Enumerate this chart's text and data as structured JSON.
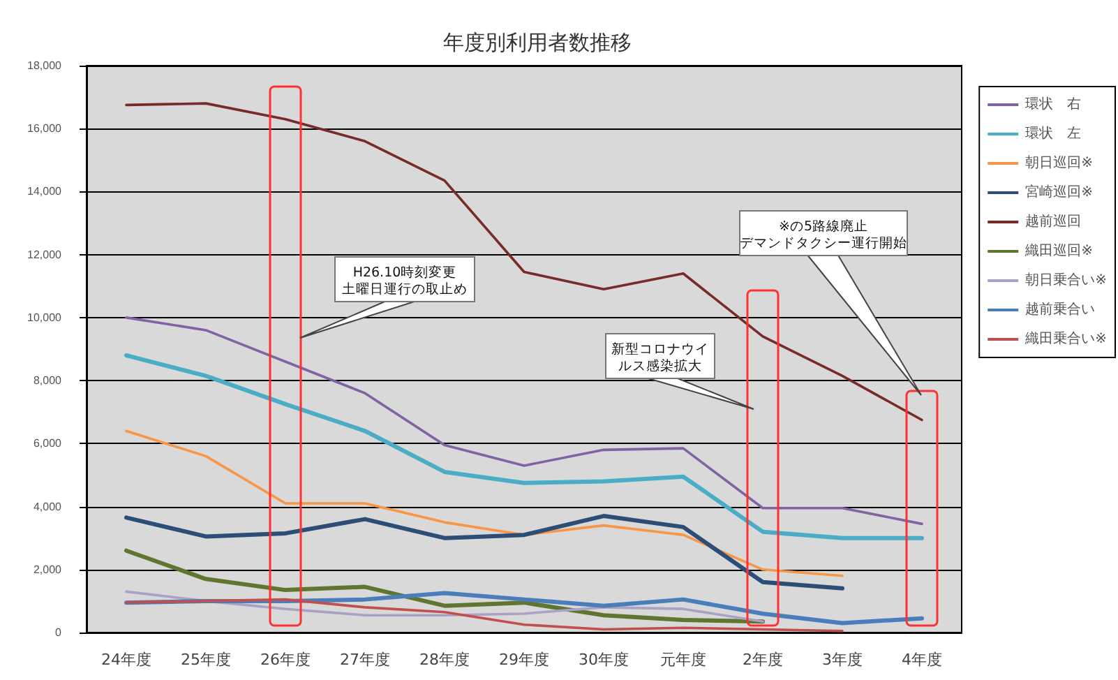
{
  "chart_data": {
    "type": "line",
    "title": "年度別利用者数推移",
    "categories": [
      "24年度",
      "25年度",
      "26年度",
      "27年度",
      "28年度",
      "29年度",
      "30年度",
      "元年度",
      "2年度",
      "3年度",
      "4年度"
    ],
    "series": [
      {
        "name": "環状　右",
        "color": "#8064a2",
        "values": [
          10000,
          9600,
          8600,
          7600,
          5950,
          5300,
          5800,
          5850,
          3950,
          3950,
          3450
        ]
      },
      {
        "name": "環状　左",
        "color": "#4bacc6",
        "values": [
          8800,
          8150,
          7250,
          6400,
          5100,
          4750,
          4800,
          4950,
          3200,
          3000,
          3000
        ]
      },
      {
        "name": "朝日巡回※",
        "color": "#f79646",
        "values": [
          6400,
          5600,
          4100,
          4100,
          3500,
          3100,
          3400,
          3100,
          2000,
          1800,
          null
        ]
      },
      {
        "name": "宮崎巡回※",
        "color": "#2c4d75",
        "values": [
          3650,
          3050,
          3150,
          3600,
          3000,
          3100,
          3700,
          3350,
          1600,
          1400,
          null
        ]
      },
      {
        "name": "越前巡回",
        "color": "#772c2a",
        "values": [
          16750,
          16800,
          16300,
          15600,
          14350,
          11450,
          10900,
          11400,
          9400,
          8150,
          6750
        ]
      },
      {
        "name": "織田巡回※",
        "color": "#5f7530",
        "values": [
          2600,
          1700,
          1350,
          1450,
          850,
          950,
          550,
          400,
          350,
          null,
          null
        ]
      },
      {
        "name": "朝日乗合い※",
        "color": "#a9a2c6",
        "values": [
          1300,
          1000,
          750,
          550,
          550,
          600,
          800,
          750,
          350,
          null,
          null
        ]
      },
      {
        "name": "越前乗合い",
        "color": "#4a7ebb",
        "values": [
          950,
          1000,
          1000,
          1050,
          1250,
          1050,
          850,
          1050,
          600,
          300,
          450
        ]
      },
      {
        "name": "織田乗合い※",
        "color": "#c0504d",
        "values": [
          950,
          1000,
          1050,
          800,
          650,
          250,
          100,
          150,
          100,
          50,
          null
        ]
      }
    ],
    "ylim": [
      0,
      18000
    ],
    "yticks": [
      0,
      {
        "value": 2000,
        "label": "2,000"
      },
      {
        "value": 4000,
        "label": "4,000"
      },
      {
        "value": 6000,
        "label": "6,000"
      },
      {
        "value": 8000,
        "label": "8,000"
      },
      {
        "value": 10000,
        "label": "10,000"
      },
      {
        "value": 12000,
        "label": "12,000"
      },
      {
        "value": 14000,
        "label": "14,000"
      },
      {
        "value": 16000,
        "label": "16,000"
      },
      {
        "value": 18000,
        "label": "18,000"
      }
    ],
    "grid": "y",
    "legend": "right",
    "marker": "none",
    "line_style": "solid",
    "annotations": [
      "H26.10時刻変更土曜日運行の取止め",
      "新型コロナウイルス感染拡大",
      "※の5路線廃止デマンドタクシー運行開始"
    ]
  }
}
